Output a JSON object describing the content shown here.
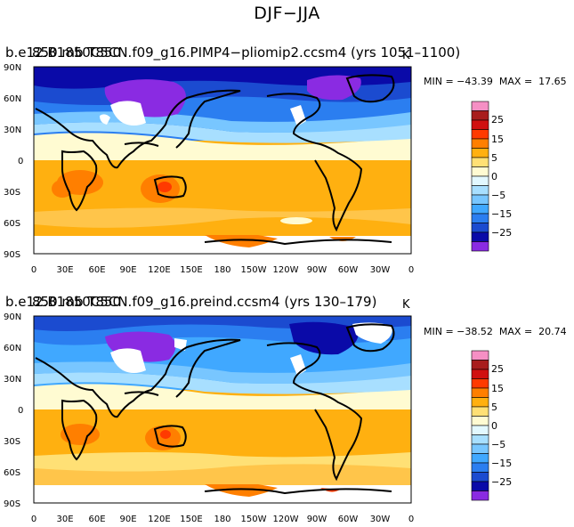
{
  "figure": {
    "title": "DJF−JJA"
  },
  "colorbar": {
    "levels": [
      "25",
      "15",
      "5",
      "0",
      "−5",
      "−15",
      "−25"
    ],
    "colors": [
      "#f58fc4",
      "#a81d1d",
      "#d01010",
      "#ff3a00",
      "#ff7f00",
      "#ffb010",
      "#ffe075",
      "#fffbd2",
      "#e2f8ff",
      "#a8dfff",
      "#78c6ff",
      "#40a8ff",
      "#2b7ef0",
      "#1b4bd0",
      "#0a0aa8",
      "#8a2be2"
    ]
  },
  "chart_data": [
    {
      "type": "heatmap",
      "title": "b.e12.B1850C5CN.f09_g16.PIMP4−pliomip2.ccsm4 (yrs 1051–1100)",
      "overlap_title": "850 mb T850",
      "units": "K",
      "min_label": "MIN = −43.39",
      "max_label": "MAX =  17.65",
      "min": -43.39,
      "max": 17.65,
      "xlabel": "",
      "ylabel": "",
      "x_ticks": [
        "0",
        "30E",
        "60E",
        "90E",
        "120E",
        "150E",
        "180",
        "150W",
        "120W",
        "90W",
        "60W",
        "30W",
        "0"
      ],
      "y_ticks": [
        "90N",
        "60N",
        "30N",
        "0",
        "30S",
        "60S",
        "90S"
      ],
      "xlim": [
        0,
        360
      ],
      "ylim": [
        -90,
        90
      ],
      "zonal_bands": [
        {
          "lat_range": [
            60,
            90
          ],
          "value": -22
        },
        {
          "lat_range": [
            30,
            60
          ],
          "value": -12
        },
        {
          "lat_range": [
            15,
            30
          ],
          "value": -4
        },
        {
          "lat_range": [
            0,
            15
          ],
          "value": 2
        },
        {
          "lat_range": [
            -30,
            0
          ],
          "value": 6
        },
        {
          "lat_range": [
            -70,
            -30
          ],
          "value": 8
        }
      ]
    },
    {
      "type": "heatmap",
      "title": "b.e12.B1850C5CN.f09_g16.preind.ccsm4 (yrs 130–179)",
      "overlap_title": "850 mb T850",
      "units": "K",
      "min_label": "MIN = −38.52",
      "max_label": "MAX =  20.74",
      "min": -38.52,
      "max": 20.74,
      "xlabel": "",
      "ylabel": "",
      "x_ticks": [
        "0",
        "30E",
        "60E",
        "90E",
        "120E",
        "150E",
        "180",
        "150W",
        "120W",
        "90W",
        "60W",
        "30W",
        "0"
      ],
      "y_ticks": [
        "90N",
        "60N",
        "30N",
        "0",
        "30S",
        "60S",
        "90S"
      ],
      "xlim": [
        0,
        360
      ],
      "ylim": [
        -90,
        90
      ],
      "zonal_bands": [
        {
          "lat_range": [
            60,
            90
          ],
          "value": -24
        },
        {
          "lat_range": [
            30,
            60
          ],
          "value": -14
        },
        {
          "lat_range": [
            15,
            30
          ],
          "value": -5
        },
        {
          "lat_range": [
            0,
            15
          ],
          "value": 1
        },
        {
          "lat_range": [
            -30,
            0
          ],
          "value": 5
        },
        {
          "lat_range": [
            -70,
            -30
          ],
          "value": 6
        }
      ]
    }
  ]
}
